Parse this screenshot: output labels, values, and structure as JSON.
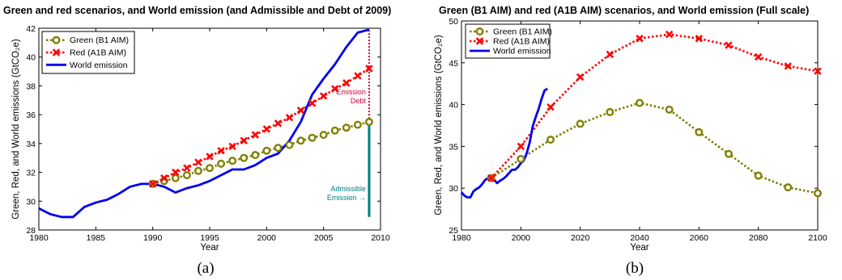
{
  "chart_data": [
    {
      "type": "line",
      "title": "Green and red scenarios, and World emission (and Admissible and Debt of 2009)",
      "xlabel": "Year",
      "ylabel": "Green, Red, and World emissions (GtCO₂e)",
      "xlim": [
        1980,
        2010
      ],
      "ylim": [
        28,
        42
      ],
      "xticks": [
        1980,
        1985,
        1990,
        1995,
        2000,
        2005,
        2010
      ],
      "yticks": [
        28,
        30,
        32,
        34,
        36,
        38,
        40,
        42
      ],
      "grid": false,
      "legend_position": "top-left",
      "colors": {
        "green": "#808000",
        "red": "#ff0000",
        "world": "#0000ee",
        "debt": "#cc0033",
        "admissible": "#008080"
      },
      "series": [
        {
          "name": "Green (B1 AIM)",
          "style": "dotted-circle-markers",
          "x": [
            1990,
            1991,
            1992,
            1993,
            1994,
            1995,
            1996,
            1997,
            1998,
            1999,
            2000,
            2001,
            2002,
            2003,
            2004,
            2005,
            2006,
            2007,
            2008,
            2009
          ],
          "values": [
            31.2,
            31.4,
            31.6,
            31.8,
            32.1,
            32.3,
            32.6,
            32.8,
            33.0,
            33.2,
            33.5,
            33.7,
            33.9,
            34.2,
            34.4,
            34.6,
            34.9,
            35.1,
            35.3,
            35.5
          ]
        },
        {
          "name": "Red (A1B AIM)",
          "style": "dotted-x-markers",
          "x": [
            1990,
            1991,
            1992,
            1993,
            1994,
            1995,
            1996,
            1997,
            1998,
            1999,
            2000,
            2001,
            2002,
            2003,
            2004,
            2005,
            2006,
            2007,
            2008,
            2009
          ],
          "values": [
            31.2,
            31.6,
            32.0,
            32.3,
            32.7,
            33.1,
            33.5,
            33.8,
            34.2,
            34.6,
            35.0,
            35.4,
            35.8,
            36.3,
            36.8,
            37.3,
            37.8,
            38.2,
            38.7,
            39.2
          ]
        },
        {
          "name": "World emission",
          "style": "solid",
          "x": [
            1980,
            1981,
            1982,
            1983,
            1984,
            1985,
            1986,
            1987,
            1988,
            1989,
            1990,
            1991,
            1992,
            1993,
            1994,
            1995,
            1996,
            1997,
            1998,
            1999,
            2000,
            2001,
            2002,
            2003,
            2004,
            2005,
            2006,
            2007,
            2008,
            2009
          ],
          "values": [
            29.5,
            29.1,
            28.9,
            28.9,
            29.6,
            29.9,
            30.1,
            30.5,
            31.0,
            31.2,
            31.2,
            31.0,
            30.6,
            30.9,
            31.1,
            31.4,
            31.8,
            32.2,
            32.2,
            32.5,
            33.0,
            33.3,
            34.2,
            35.5,
            37.4,
            38.5,
            39.5,
            40.7,
            41.7,
            41.9
          ]
        }
      ],
      "annotations": [
        {
          "text": "Emission\nDebt",
          "color": "#cc0033",
          "range": [
            35.5,
            41.9
          ],
          "at_x": 2009
        },
        {
          "text": "Admissible\nEmission →",
          "color": "#008080",
          "range": [
            28.9,
            35.5
          ],
          "at_x": 2009
        }
      ],
      "caption": "(a)"
    },
    {
      "type": "line",
      "title": "Green (B1 AIM) and red (A1B AIM) scenarios, and World emission (Full scale)",
      "xlabel": "Year",
      "ylabel": "Green, Red, and World emissions (GtCO₂e)",
      "xlim": [
        1980,
        2100
      ],
      "ylim": [
        25,
        50
      ],
      "xticks": [
        1980,
        2000,
        2020,
        2040,
        2060,
        2080,
        2100
      ],
      "yticks": [
        25,
        30,
        35,
        40,
        45,
        50
      ],
      "grid": false,
      "legend_position": "top-left",
      "colors": {
        "green": "#808000",
        "red": "#ff0000",
        "world": "#0000ee"
      },
      "series": [
        {
          "name": "Green (B1 AIM)",
          "style": "dotted-circle-markers",
          "x": [
            1990,
            2000,
            2010,
            2020,
            2030,
            2040,
            2050,
            2060,
            2070,
            2080,
            2090,
            2100
          ],
          "values": [
            31.2,
            33.5,
            35.8,
            37.7,
            39.1,
            40.2,
            39.4,
            36.7,
            34.1,
            31.5,
            30.1,
            29.4
          ]
        },
        {
          "name": "Red (A1B AIM)",
          "style": "dotted-x-markers",
          "x": [
            1990,
            2000,
            2010,
            2020,
            2030,
            2040,
            2050,
            2060,
            2070,
            2080,
            2090,
            2100
          ],
          "values": [
            31.2,
            35.0,
            39.7,
            43.3,
            46.0,
            47.9,
            48.4,
            47.9,
            47.1,
            45.7,
            44.6,
            44.0
          ]
        },
        {
          "name": "World emission",
          "style": "solid",
          "x": [
            1980,
            1981,
            1982,
            1983,
            1984,
            1985,
            1986,
            1987,
            1988,
            1989,
            1990,
            1991,
            1992,
            1993,
            1994,
            1995,
            1996,
            1997,
            1998,
            1999,
            2000,
            2001,
            2002,
            2003,
            2004,
            2005,
            2006,
            2007,
            2008,
            2009
          ],
          "values": [
            29.5,
            29.1,
            28.9,
            28.9,
            29.6,
            29.9,
            30.1,
            30.5,
            31.0,
            31.2,
            31.2,
            31.0,
            30.6,
            30.9,
            31.1,
            31.4,
            31.8,
            32.2,
            32.2,
            32.5,
            33.0,
            33.3,
            34.2,
            35.5,
            37.4,
            38.5,
            39.5,
            40.7,
            41.7,
            41.9
          ]
        }
      ],
      "caption": "(b)"
    }
  ]
}
